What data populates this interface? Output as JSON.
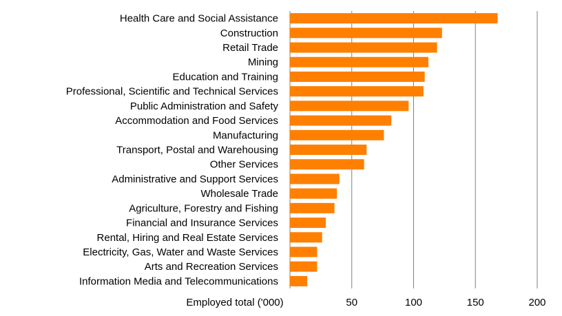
{
  "chart_data": {
    "type": "bar",
    "orientation": "horizontal",
    "categories": [
      "Health Care and Social Assistance",
      "Construction",
      "Retail Trade",
      "Mining",
      "Education and Training",
      "Professional, Scientific and Technical Services",
      "Public Administration and Safety",
      "Accommodation and Food Services",
      "Manufacturing",
      "Transport, Postal and Warehousing",
      "Other Services",
      "Administrative and Support Services",
      "Wholesale Trade",
      "Agriculture, Forestry and Fishing",
      "Financial and Insurance Services",
      "Rental, Hiring and Real Estate Services",
      "Electricity, Gas, Water and Waste Services",
      "Arts and Recreation Services",
      "Information Media and Telecommunications"
    ],
    "values": [
      168,
      123,
      119,
      112,
      109,
      108,
      96,
      82,
      76,
      62,
      60,
      40,
      38,
      36,
      29,
      26,
      22,
      22,
      14
    ],
    "title": "",
    "xlabel": "Employed total ('000)",
    "ylabel": "",
    "xlim": [
      0,
      200
    ],
    "xticks": [
      50,
      100,
      150,
      200
    ],
    "grid": "vertical",
    "legend": "none",
    "bar_color": "#FF7F00",
    "grid_color": "#808080"
  }
}
